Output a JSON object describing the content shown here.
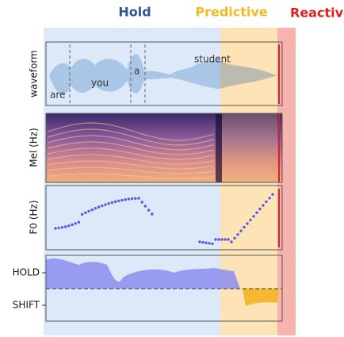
{
  "header": {
    "hold": "Hold",
    "predictive": "Predictive",
    "reactive": "Reactive"
  },
  "panels": {
    "waveform": "waveform",
    "mel": "Mel (Hz)",
    "f0": "F0 (Hz)",
    "hold": "HOLD",
    "shift": "SHIFT"
  },
  "words": [
    "are",
    "you",
    "a",
    "student"
  ]
}
